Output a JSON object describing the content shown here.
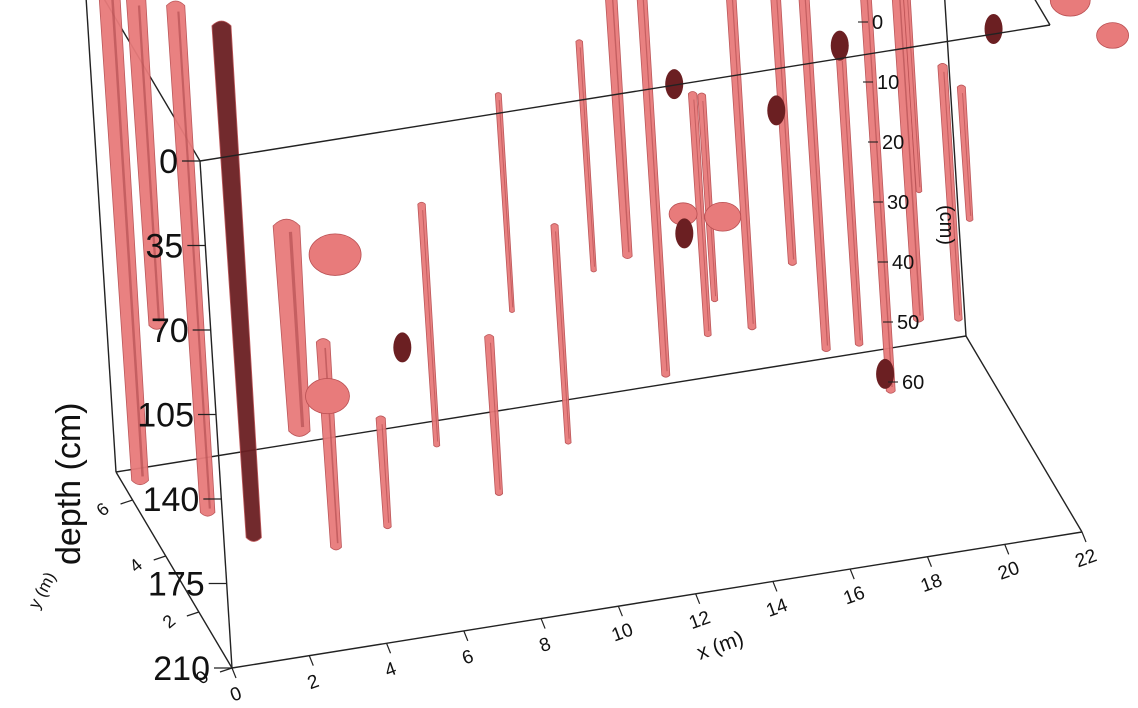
{
  "chart_data": {
    "type": "3d-isosurface",
    "axes": {
      "x": {
        "label": "x (m)",
        "ticks": [
          "0",
          "2",
          "4",
          "6",
          "8",
          "10",
          "12",
          "14",
          "16",
          "18",
          "20",
          "22"
        ],
        "range": [
          0,
          22
        ]
      },
      "y": {
        "label": "y (m)",
        "ticks": [
          "0",
          "2",
          "4",
          "6"
        ],
        "range": [
          0,
          7
        ]
      },
      "z": {
        "label": "depth (cm)",
        "ticks": [
          "0",
          "35",
          "70",
          "105",
          "140",
          "175",
          "210"
        ],
        "range": [
          0,
          210
        ]
      },
      "z_back": {
        "label": "(cm)",
        "ticks": [
          "0",
          "10",
          "20",
          "30",
          "40",
          "50",
          "60"
        ]
      }
    },
    "colors": {
      "surface": "#e87b7b",
      "surface_dark": "#6b1f22",
      "edge": "#222222"
    },
    "bodies": [
      {
        "x": 0.3,
        "y": 6.2,
        "top": 0,
        "bottom": 205,
        "w": 1.1
      },
      {
        "x": 0.9,
        "y": 6.0,
        "top": 5,
        "bottom": 140,
        "w": 1.0
      },
      {
        "x": 1.6,
        "y": 5.2,
        "top": 0,
        "bottom": 210,
        "w": 0.9
      },
      {
        "x": 2.4,
        "y": 4.3,
        "top": 0,
        "bottom": 212,
        "w": 0.9,
        "dark": true
      },
      {
        "x": 3.4,
        "y": 3.4,
        "top": 75,
        "bottom": 160,
        "w": 1.2
      },
      {
        "x": 4.0,
        "y": 3.0,
        "top": 120,
        "bottom": 205,
        "w": 0.6
      },
      {
        "x": 5.2,
        "y": 2.6,
        "top": 150,
        "bottom": 195,
        "w": 0.4
      },
      {
        "x": 7.2,
        "y": 4.2,
        "top": 85,
        "bottom": 185,
        "w": 0.35
      },
      {
        "x": 8.3,
        "y": 3.1,
        "top": 130,
        "bottom": 195,
        "w": 0.4
      },
      {
        "x": 9.8,
        "y": 5.4,
        "top": 60,
        "bottom": 150,
        "w": 0.3
      },
      {
        "x": 10.8,
        "y": 4.8,
        "top": 110,
        "bottom": 200,
        "w": 0.35
      },
      {
        "x": 12.3,
        "y": 6.3,
        "top": 55,
        "bottom": 150,
        "w": 0.35
      },
      {
        "x": 13.0,
        "y": 5.8,
        "top": 25,
        "bottom": 140,
        "w": 0.6
      },
      {
        "x": 13.6,
        "y": 5.3,
        "top": 15,
        "bottom": 185,
        "w": 0.5
      },
      {
        "x": 14.4,
        "y": 4.4,
        "top": 60,
        "bottom": 160,
        "w": 0.4
      },
      {
        "x": 15.2,
        "y": 5.9,
        "top": 80,
        "bottom": 165,
        "w": 0.4
      },
      {
        "x": 16.0,
        "y": 5.6,
        "top": 20,
        "bottom": 175,
        "w": 0.5
      },
      {
        "x": 17.1,
        "y": 5.5,
        "top": 30,
        "bottom": 150,
        "w": 0.5
      },
      {
        "x": 17.6,
        "y": 4.9,
        "top": 30,
        "bottom": 180,
        "w": 0.5
      },
      {
        "x": 18.3,
        "y": 4.5,
        "top": 55,
        "bottom": 175,
        "w": 0.45
      },
      {
        "x": 19.3,
        "y": 5.2,
        "top": 15,
        "bottom": 205,
        "w": 0.55
      },
      {
        "x": 19.9,
        "y": 4.6,
        "top": 10,
        "bottom": 170,
        "w": 0.6
      },
      {
        "x": 20.5,
        "y": 5.6,
        "top": 45,
        "bottom": 130,
        "w": 0.35
      },
      {
        "x": 21.0,
        "y": 4.8,
        "top": 70,
        "bottom": 175,
        "w": 0.45
      },
      {
        "x": 21.6,
        "y": 5.2,
        "top": 85,
        "bottom": 140,
        "w": 0.4
      }
    ],
    "blobs": [
      {
        "x": 3.0,
        "y": 7.0,
        "z": 5,
        "r": 22
      },
      {
        "x": 4.3,
        "y": 7.0,
        "z": 8,
        "r": 18
      },
      {
        "x": 10.7,
        "y": 7.0,
        "z": 4,
        "r": 14
      },
      {
        "x": 13.3,
        "y": 7.0,
        "z": 38,
        "r": 28
      },
      {
        "x": 14.8,
        "y": 7.0,
        "z": 38,
        "r": 26
      },
      {
        "x": 15.8,
        "y": 7.0,
        "z": 42,
        "r": 24
      },
      {
        "x": 16.8,
        "y": 7.0,
        "z": 42,
        "r": 22
      },
      {
        "x": 17.4,
        "y": 7.0,
        "z": 50,
        "r": 20
      },
      {
        "x": 19.0,
        "y": 7.0,
        "z": 15,
        "r": 12
      },
      {
        "x": 20.9,
        "y": 7.0,
        "z": 20,
        "r": 24
      },
      {
        "x": 22.0,
        "y": 7.0,
        "z": 14,
        "r": 18
      },
      {
        "x": 23.2,
        "y": 7.0,
        "z": 10,
        "r": 14
      },
      {
        "x": 24.4,
        "y": 7.0,
        "z": 8,
        "r": 16
      },
      {
        "x": 15.2,
        "y": 5.0,
        "z": 120,
        "r": 18
      },
      {
        "x": 14.0,
        "y": 4.5,
        "z": 110,
        "r": 14
      },
      {
        "x": 4.6,
        "y": 3.4,
        "z": 90,
        "r": 26
      },
      {
        "x": 4.1,
        "y": 3.2,
        "z": 145,
        "r": 22
      },
      {
        "x": 24.6,
        "y": 5.2,
        "z": 50,
        "r": 20
      },
      {
        "x": 25.5,
        "y": 4.8,
        "z": 60,
        "r": 16
      }
    ],
    "dark_spots": [
      {
        "x": 8.2,
        "y": 6.6,
        "z": 10
      },
      {
        "x": 6.4,
        "y": 4.0,
        "z": 140
      },
      {
        "x": 14.0,
        "y": 4.5,
        "z": 118
      },
      {
        "x": 17.2,
        "y": 6.2,
        "z": 95
      },
      {
        "x": 14.4,
        "y": 5.6,
        "z": 70
      },
      {
        "x": 18.4,
        "y": 4.8,
        "z": 55
      },
      {
        "x": 22.3,
        "y": 4.6,
        "z": 55
      },
      {
        "x": 25.8,
        "y": 5.0,
        "z": 38
      },
      {
        "x": 18.5,
        "y": 3.4,
        "z": 175
      }
    ]
  }
}
